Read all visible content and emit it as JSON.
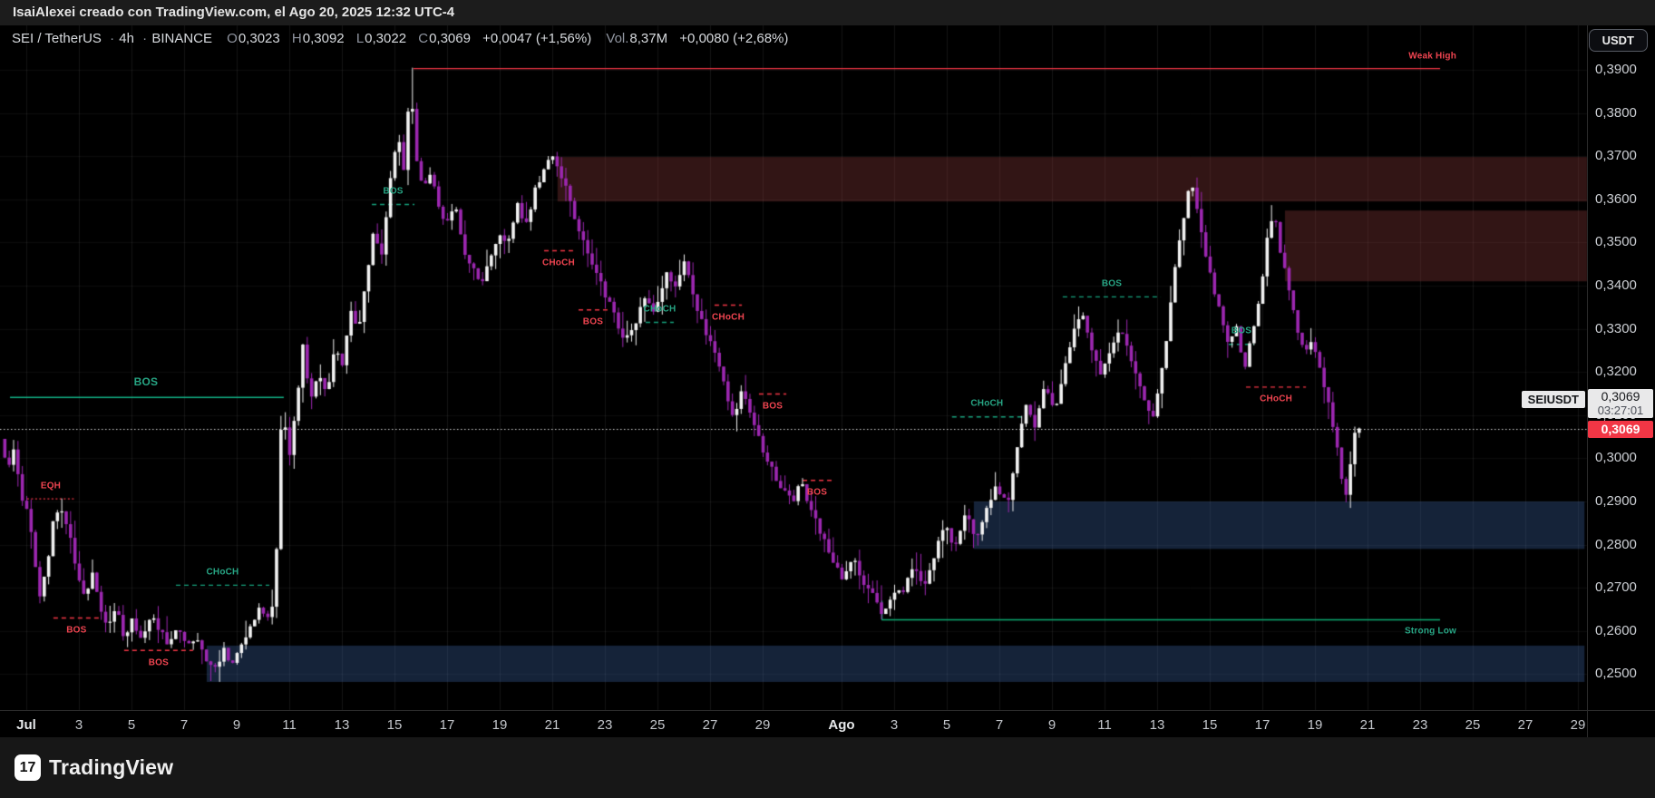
{
  "header": {
    "text": "IsaiAlexei creado con TradingView.com, el Ago 20, 2025 12:32 UTC-4"
  },
  "toolbar": {
    "currency_button": "USDT"
  },
  "title_bar": {
    "symbol": "SEI / TetherUS",
    "separator": "·",
    "interval": "4h",
    "exchange": "BINANCE",
    "open_label": "O",
    "open": "0,3023",
    "high_label": "H",
    "high": "0,3092",
    "low_label": "L",
    "low": "0,3022",
    "close_label": "C",
    "close": "0,3069",
    "change": "+0,0047 (+1,56%)",
    "volume_label": "Vol.",
    "volume": "8,37M",
    "volume_change": "+0,0080 (+2,68%)"
  },
  "price_scale": {
    "tag": "SEIUSDT",
    "current_price": "0,3069",
    "countdown": "03:27:01",
    "last_price_label": "0,3069"
  },
  "footer": {
    "brand": "TradingView",
    "logo_mark": "17"
  },
  "chart_data": {
    "type": "candlestick",
    "symbol": "SEIUSDT",
    "interval": "4h",
    "exchange": "BINANCE",
    "last_price": 0.3069,
    "start_day": -0.9,
    "end_day": 50.62,
    "clamp_high": 0.3905,
    "clamp_low": 0.2476,
    "candle_colors": {
      "up": "#f2f2f2",
      "down": "#9c27b0"
    },
    "grid_colors": {
      "vertical": "rgba(255,255,255,0.08)",
      "horizontal": "rgba(255,255,255,0.05)"
    },
    "y_axis": {
      "min": 0.25,
      "max": 0.39,
      "tick_step": 0.01,
      "decimal_comma": true
    },
    "x_axis": {
      "labels": [
        {
          "text": "Jul",
          "day": 0,
          "month": true
        },
        {
          "text": "3",
          "day": 2
        },
        {
          "text": "5",
          "day": 4
        },
        {
          "text": "7",
          "day": 6
        },
        {
          "text": "9",
          "day": 8
        },
        {
          "text": "11",
          "day": 10
        },
        {
          "text": "13",
          "day": 12
        },
        {
          "text": "15",
          "day": 14
        },
        {
          "text": "17",
          "day": 16
        },
        {
          "text": "19",
          "day": 18
        },
        {
          "text": "21",
          "day": 20
        },
        {
          "text": "23",
          "day": 22
        },
        {
          "text": "25",
          "day": 24
        },
        {
          "text": "27",
          "day": 26
        },
        {
          "text": "29",
          "day": 28
        },
        {
          "text": "Ago",
          "day": 31,
          "month": true
        },
        {
          "text": "3",
          "day": 33
        },
        {
          "text": "5",
          "day": 35
        },
        {
          "text": "7",
          "day": 37
        },
        {
          "text": "9",
          "day": 39
        },
        {
          "text": "11",
          "day": 41
        },
        {
          "text": "13",
          "day": 43
        },
        {
          "text": "15",
          "day": 45
        },
        {
          "text": "17",
          "day": 47
        },
        {
          "text": "19",
          "day": 49
        },
        {
          "text": "21",
          "day": 51
        },
        {
          "text": "23",
          "day": 53
        },
        {
          "text": "25",
          "day": 55
        },
        {
          "text": "27",
          "day": 57
        },
        {
          "text": "29",
          "day": 59
        }
      ]
    },
    "zones": [
      {
        "name": "supply-zone-a",
        "top": 0.3698,
        "bottom": 0.3595,
        "from_day": 20.2,
        "to_day": 59.35,
        "fill": "rgba(166,68,68,0.30)"
      },
      {
        "name": "supply-zone-b",
        "top": 0.3574,
        "bottom": 0.341,
        "from_day": 47.86,
        "to_day": 59.35,
        "fill": "rgba(166,68,68,0.30)"
      },
      {
        "name": "demand-zone-low",
        "top": 0.2566,
        "bottom": 0.2482,
        "from_day": 6.86,
        "to_day": 59.25,
        "fill": "rgba(70,115,190,0.30)"
      },
      {
        "name": "demand-zone-mid",
        "top": 0.29,
        "bottom": 0.279,
        "from_day": 36.03,
        "to_day": 59.25,
        "fill": "rgba(70,115,190,0.30)"
      }
    ],
    "levels": [
      {
        "name": "weak-high",
        "label": "Weak High",
        "price": 0.3904,
        "from_day": 14.72,
        "to_day": 53.76,
        "color": "#f23645",
        "label_side": "above",
        "label_align": "right"
      },
      {
        "name": "strong-low",
        "label": "Strong Low",
        "price": 0.2627,
        "from_day": 32.52,
        "to_day": 53.76,
        "color": "#0cab72",
        "label_side": "below",
        "label_align": "right",
        "nub": true
      },
      {
        "name": "bos-major",
        "label": "BOS",
        "price": 0.3142,
        "from_day": -0.62,
        "to_day": 9.79,
        "color": "#12b286",
        "label_day": 4.55,
        "label_side": "above",
        "big": true
      }
    ],
    "markers": [
      {
        "label": "EQH",
        "color": "red",
        "price": 0.2907,
        "from_day": 0.03,
        "to_day": 1.83,
        "side": "above",
        "style": "dotted"
      },
      {
        "label": "BOS",
        "color": "red",
        "price": 0.2631,
        "from_day": 1.03,
        "to_day": 2.79,
        "side": "below"
      },
      {
        "label": "BOS",
        "color": "red",
        "price": 0.2556,
        "from_day": 3.72,
        "to_day": 6.34,
        "side": "below"
      },
      {
        "label": "CHoCH",
        "color": "teal",
        "price": 0.2707,
        "from_day": 5.69,
        "to_day": 9.24,
        "side": "above"
      },
      {
        "label": "BOS",
        "color": "teal",
        "price": 0.3589,
        "from_day": 13.14,
        "to_day": 14.76,
        "side": "above"
      },
      {
        "label": "CHoCH",
        "color": "red",
        "price": 0.3482,
        "from_day": 19.69,
        "to_day": 20.79,
        "side": "below"
      },
      {
        "label": "BOS",
        "color": "red",
        "price": 0.3345,
        "from_day": 21.0,
        "to_day": 22.1,
        "side": "below"
      },
      {
        "label": "CHoCH",
        "color": "teal",
        "price": 0.3316,
        "from_day": 23.55,
        "to_day": 24.62,
        "side": "above"
      },
      {
        "label": "CHoCH",
        "color": "red",
        "price": 0.3356,
        "from_day": 26.17,
        "to_day": 27.21,
        "side": "below"
      },
      {
        "label": "BOS",
        "color": "red",
        "price": 0.315,
        "from_day": 27.86,
        "to_day": 28.9,
        "side": "below"
      },
      {
        "label": "BOS",
        "color": "red",
        "price": 0.295,
        "from_day": 29.52,
        "to_day": 30.62,
        "side": "below"
      },
      {
        "label": "CHoCH",
        "color": "teal",
        "price": 0.3097,
        "from_day": 35.2,
        "to_day": 37.86,
        "side": "above"
      },
      {
        "label": "BOS",
        "color": "teal",
        "price": 0.3375,
        "from_day": 39.41,
        "to_day": 43.14,
        "side": "above"
      },
      {
        "label": "BOS",
        "color": "teal",
        "price": 0.3265,
        "from_day": 45.72,
        "to_day": 46.69,
        "side": "above"
      },
      {
        "label": "CHoCH",
        "color": "red",
        "price": 0.3166,
        "from_day": 46.38,
        "to_day": 48.66,
        "side": "below"
      }
    ],
    "marker_colors": {
      "red": "#f23645",
      "teal": "#15a17c"
    },
    "wick_overrides": [
      {
        "day": 1.38,
        "high": 0.2907
      },
      {
        "day": 7.28,
        "low": 0.2482
      },
      {
        "day": 14.7,
        "high": 0.3905
      },
      {
        "day": 32.55,
        "low": 0.2627
      },
      {
        "day": 50.3,
        "low": 0.2885
      }
    ],
    "price_path": [
      [
        -0.9,
        0.3045
      ],
      [
        -0.65,
        0.2975
      ],
      [
        -0.4,
        0.3025
      ],
      [
        -0.15,
        0.2925
      ],
      [
        0.1,
        0.2875
      ],
      [
        0.35,
        0.2795
      ],
      [
        0.6,
        0.2675
      ],
      [
        0.85,
        0.2745
      ],
      [
        1.1,
        0.2855
      ],
      [
        1.4,
        0.2885
      ],
      [
        1.7,
        0.2825
      ],
      [
        2.0,
        0.2745
      ],
      [
        2.3,
        0.2675
      ],
      [
        2.6,
        0.2735
      ],
      [
        2.9,
        0.2655
      ],
      [
        3.2,
        0.2605
      ],
      [
        3.5,
        0.2655
      ],
      [
        3.8,
        0.2585
      ],
      [
        4.1,
        0.2625
      ],
      [
        4.45,
        0.2575
      ],
      [
        4.8,
        0.2635
      ],
      [
        5.15,
        0.2605
      ],
      [
        5.5,
        0.2565
      ],
      [
        5.85,
        0.2615
      ],
      [
        6.2,
        0.2555
      ],
      [
        6.55,
        0.2595
      ],
      [
        6.9,
        0.2535
      ],
      [
        7.25,
        0.2515
      ],
      [
        7.6,
        0.2555
      ],
      [
        7.95,
        0.2525
      ],
      [
        8.3,
        0.2575
      ],
      [
        8.65,
        0.2615
      ],
      [
        9.0,
        0.2655
      ],
      [
        9.35,
        0.2615
      ],
      [
        9.55,
        0.2695
      ],
      [
        9.7,
        0.3005
      ],
      [
        9.85,
        0.3145
      ],
      [
        10.05,
        0.2985
      ],
      [
        10.3,
        0.3105
      ],
      [
        10.6,
        0.3255
      ],
      [
        10.9,
        0.3135
      ],
      [
        11.2,
        0.3205
      ],
      [
        11.5,
        0.3145
      ],
      [
        11.8,
        0.3255
      ],
      [
        12.1,
        0.3215
      ],
      [
        12.4,
        0.3345
      ],
      [
        12.7,
        0.3295
      ],
      [
        13.0,
        0.3415
      ],
      [
        13.3,
        0.3525
      ],
      [
        13.6,
        0.3465
      ],
      [
        13.9,
        0.3635
      ],
      [
        14.2,
        0.3745
      ],
      [
        14.45,
        0.3665
      ],
      [
        14.68,
        0.3885
      ],
      [
        14.9,
        0.3705
      ],
      [
        15.2,
        0.3625
      ],
      [
        15.5,
        0.3665
      ],
      [
        15.8,
        0.3565
      ],
      [
        16.1,
        0.3545
      ],
      [
        16.4,
        0.3585
      ],
      [
        16.7,
        0.3485
      ],
      [
        17.0,
        0.3445
      ],
      [
        17.35,
        0.3405
      ],
      [
        17.7,
        0.3455
      ],
      [
        18.05,
        0.3525
      ],
      [
        18.4,
        0.3495
      ],
      [
        18.75,
        0.3585
      ],
      [
        19.1,
        0.3545
      ],
      [
        19.45,
        0.3625
      ],
      [
        19.8,
        0.3675
      ],
      [
        20.15,
        0.3695
      ],
      [
        20.5,
        0.3645
      ],
      [
        20.8,
        0.3585
      ],
      [
        21.2,
        0.3515
      ],
      [
        21.6,
        0.3445
      ],
      [
        22.0,
        0.3395
      ],
      [
        22.4,
        0.3335
      ],
      [
        22.8,
        0.3265
      ],
      [
        23.2,
        0.3305
      ],
      [
        23.6,
        0.3375
      ],
      [
        24.0,
        0.3335
      ],
      [
        24.4,
        0.3435
      ],
      [
        24.8,
        0.3385
      ],
      [
        25.1,
        0.3455
      ],
      [
        25.5,
        0.3365
      ],
      [
        25.9,
        0.3295
      ],
      [
        26.3,
        0.3235
      ],
      [
        26.7,
        0.3155
      ],
      [
        27.0,
        0.3085
      ],
      [
        27.3,
        0.3155
      ],
      [
        27.6,
        0.3105
      ],
      [
        28.0,
        0.3035
      ],
      [
        28.4,
        0.2975
      ],
      [
        28.8,
        0.2935
      ],
      [
        29.2,
        0.2895
      ],
      [
        29.5,
        0.2955
      ],
      [
        29.9,
        0.2885
      ],
      [
        30.3,
        0.2825
      ],
      [
        30.7,
        0.2775
      ],
      [
        31.1,
        0.2725
      ],
      [
        31.5,
        0.2775
      ],
      [
        31.9,
        0.2715
      ],
      [
        32.3,
        0.2685
      ],
      [
        32.6,
        0.2645
      ],
      [
        33.0,
        0.2675
      ],
      [
        33.4,
        0.2695
      ],
      [
        33.8,
        0.2745
      ],
      [
        34.2,
        0.2705
      ],
      [
        34.6,
        0.2775
      ],
      [
        35.0,
        0.2845
      ],
      [
        35.4,
        0.2795
      ],
      [
        35.8,
        0.2875
      ],
      [
        36.2,
        0.2815
      ],
      [
        36.6,
        0.2885
      ],
      [
        37.0,
        0.2935
      ],
      [
        37.4,
        0.2895
      ],
      [
        37.8,
        0.3045
      ],
      [
        38.1,
        0.3125
      ],
      [
        38.4,
        0.3065
      ],
      [
        38.8,
        0.3165
      ],
      [
        39.2,
        0.3105
      ],
      [
        39.5,
        0.3195
      ],
      [
        39.9,
        0.3295
      ],
      [
        40.2,
        0.3345
      ],
      [
        40.5,
        0.3275
      ],
      [
        40.9,
        0.3195
      ],
      [
        41.3,
        0.3245
      ],
      [
        41.7,
        0.3305
      ],
      [
        42.1,
        0.3225
      ],
      [
        42.5,
        0.3145
      ],
      [
        42.9,
        0.3095
      ],
      [
        43.2,
        0.3185
      ],
      [
        43.5,
        0.3305
      ],
      [
        43.8,
        0.3455
      ],
      [
        44.1,
        0.3555
      ],
      [
        44.35,
        0.3645
      ],
      [
        44.6,
        0.3585
      ],
      [
        44.9,
        0.3475
      ],
      [
        45.2,
        0.3395
      ],
      [
        45.5,
        0.3335
      ],
      [
        45.8,
        0.3265
      ],
      [
        46.1,
        0.3305
      ],
      [
        46.4,
        0.3205
      ],
      [
        46.7,
        0.3285
      ],
      [
        47.0,
        0.3375
      ],
      [
        47.3,
        0.3525
      ],
      [
        47.55,
        0.3565
      ],
      [
        47.8,
        0.3465
      ],
      [
        48.1,
        0.3395
      ],
      [
        48.4,
        0.3305
      ],
      [
        48.7,
        0.3235
      ],
      [
        49.0,
        0.3275
      ],
      [
        49.3,
        0.3205
      ],
      [
        49.6,
        0.3125
      ],
      [
        49.9,
        0.3035
      ],
      [
        50.1,
        0.2955
      ],
      [
        50.3,
        0.2905
      ],
      [
        50.45,
        0.3005
      ],
      [
        50.62,
        0.3069
      ]
    ]
  }
}
